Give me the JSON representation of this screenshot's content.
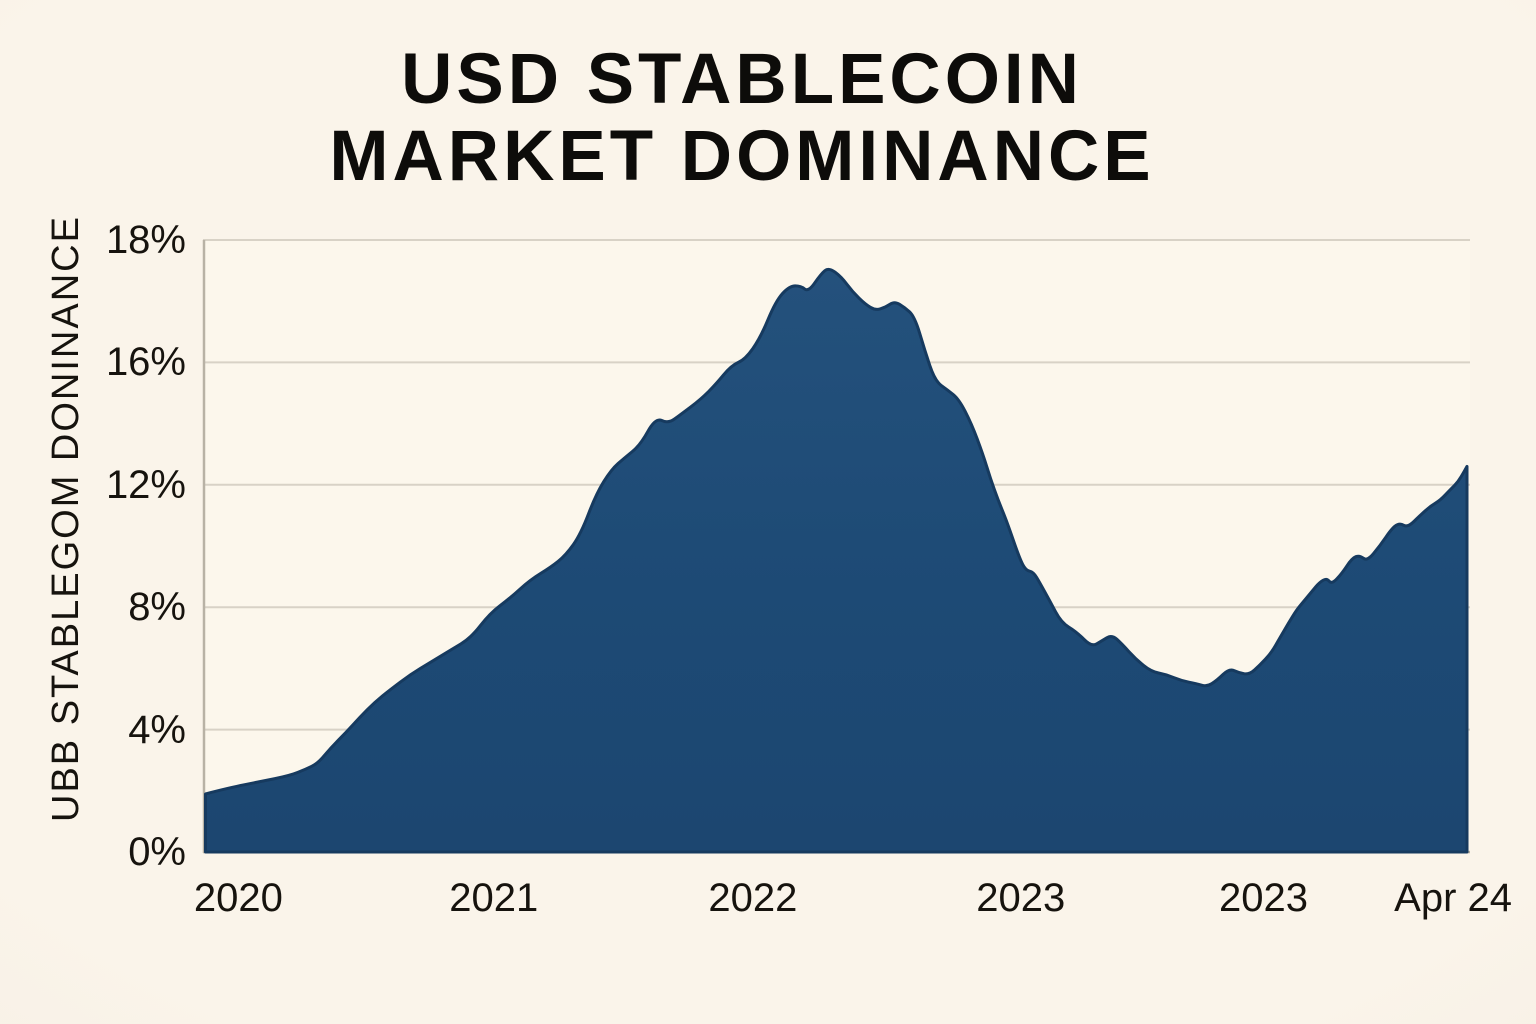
{
  "title": {
    "line1": "USD STABLECOIN",
    "line2": "MARKET DOMINANCE"
  },
  "chart_data": {
    "type": "area",
    "title": "USD STABLECOIN MARKET DOMINANCE",
    "xlabel": "",
    "ylabel": "UBB STABLEGOM DONINANCE",
    "ylim": [
      0,
      18
    ],
    "grid": true,
    "legend": "none",
    "y_ticks": [
      {
        "label": "18%",
        "value": 18
      },
      {
        "label": "16%",
        "value": 16
      },
      {
        "label": "12%",
        "value": 12
      },
      {
        "label": "8%",
        "value": 8
      },
      {
        "label": "4%",
        "value": 4
      },
      {
        "label": "0%",
        "value": 0
      }
    ],
    "x_ticks": [
      {
        "label": "2020",
        "pos": 0.028
      },
      {
        "label": "2021",
        "pos": 0.23
      },
      {
        "label": "2022",
        "pos": 0.435
      },
      {
        "label": "2023",
        "pos": 0.647
      },
      {
        "label": "2023",
        "pos": 0.839
      },
      {
        "label": "Apr 24",
        "pos": 0.989
      }
    ],
    "series": [
      {
        "name": "USD stablecoin market dominance (%)",
        "points": [
          [
            0.002,
            1.9
          ],
          [
            0.021,
            2.1
          ],
          [
            0.045,
            2.3
          ],
          [
            0.069,
            2.5
          ],
          [
            0.081,
            2.7
          ],
          [
            0.091,
            2.9
          ],
          [
            0.101,
            3.4
          ],
          [
            0.113,
            3.9
          ],
          [
            0.124,
            4.4
          ],
          [
            0.136,
            4.9
          ],
          [
            0.148,
            5.3
          ],
          [
            0.164,
            5.8
          ],
          [
            0.18,
            6.2
          ],
          [
            0.196,
            6.6
          ],
          [
            0.212,
            7.0
          ],
          [
            0.227,
            7.8
          ],
          [
            0.243,
            8.3
          ],
          [
            0.259,
            8.9
          ],
          [
            0.275,
            9.3
          ],
          [
            0.287,
            9.7
          ],
          [
            0.299,
            10.4
          ],
          [
            0.311,
            11.7
          ],
          [
            0.323,
            12.5
          ],
          [
            0.334,
            12.9
          ],
          [
            0.346,
            13.3
          ],
          [
            0.358,
            14.2
          ],
          [
            0.368,
            14.0
          ],
          [
            0.378,
            14.3
          ],
          [
            0.394,
            14.8
          ],
          [
            0.406,
            15.3
          ],
          [
            0.418,
            15.9
          ],
          [
            0.429,
            16.05
          ],
          [
            0.441,
            16.4
          ],
          [
            0.453,
            17.0
          ],
          [
            0.464,
            17.25
          ],
          [
            0.473,
            17.25
          ],
          [
            0.479,
            17.15
          ],
          [
            0.489,
            17.45
          ],
          [
            0.495,
            17.55
          ],
          [
            0.505,
            17.4
          ],
          [
            0.514,
            17.15
          ],
          [
            0.524,
            16.95
          ],
          [
            0.532,
            16.85
          ],
          [
            0.54,
            16.9
          ],
          [
            0.547,
            17.0
          ],
          [
            0.555,
            16.9
          ],
          [
            0.563,
            16.75
          ],
          [
            0.571,
            16.2
          ],
          [
            0.579,
            15.4
          ],
          [
            0.589,
            15.1
          ],
          [
            0.598,
            14.8
          ],
          [
            0.608,
            14.0
          ],
          [
            0.617,
            13.0
          ],
          [
            0.623,
            12.2
          ],
          [
            0.629,
            11.5
          ],
          [
            0.636,
            10.8
          ],
          [
            0.646,
            9.6
          ],
          [
            0.651,
            9.2
          ],
          [
            0.657,
            9.15
          ],
          [
            0.662,
            8.8
          ],
          [
            0.67,
            8.2
          ],
          [
            0.679,
            7.5
          ],
          [
            0.691,
            7.2
          ],
          [
            0.703,
            6.7
          ],
          [
            0.711,
            6.9
          ],
          [
            0.719,
            7.1
          ],
          [
            0.727,
            6.8
          ],
          [
            0.738,
            6.3
          ],
          [
            0.75,
            5.9
          ],
          [
            0.762,
            5.8
          ],
          [
            0.774,
            5.6
          ],
          [
            0.786,
            5.5
          ],
          [
            0.794,
            5.4
          ],
          [
            0.802,
            5.6
          ],
          [
            0.812,
            6.0
          ],
          [
            0.82,
            5.85
          ],
          [
            0.828,
            5.8
          ],
          [
            0.836,
            6.1
          ],
          [
            0.845,
            6.5
          ],
          [
            0.852,
            7.0
          ],
          [
            0.859,
            7.5
          ],
          [
            0.865,
            7.9
          ],
          [
            0.869,
            8.1
          ],
          [
            0.877,
            8.5
          ],
          [
            0.883,
            8.8
          ],
          [
            0.889,
            8.95
          ],
          [
            0.893,
            8.75
          ],
          [
            0.901,
            9.1
          ],
          [
            0.909,
            9.6
          ],
          [
            0.915,
            9.7
          ],
          [
            0.921,
            9.5
          ],
          [
            0.931,
            10.0
          ],
          [
            0.941,
            10.6
          ],
          [
            0.947,
            10.75
          ],
          [
            0.953,
            10.6
          ],
          [
            0.963,
            11.0
          ],
          [
            0.971,
            11.3
          ],
          [
            0.979,
            11.5
          ],
          [
            0.987,
            11.85
          ],
          [
            0.993,
            12.1
          ],
          [
            0.998,
            12.45
          ],
          [
            1.0,
            12.6
          ]
        ]
      }
    ],
    "colors": {
      "area_fill": "#1d4a75",
      "area_fill_top": "#24517c",
      "area_fill_bottom": "#1c4670",
      "area_stroke": "#163a5f",
      "grid": "#d8d2c6",
      "axis": "#b3ac9e",
      "left_axis": "#b8b2a5",
      "plot_bg": "#fcf7ec",
      "page_bg": "#f9f3e8",
      "text": "#16130e"
    }
  }
}
